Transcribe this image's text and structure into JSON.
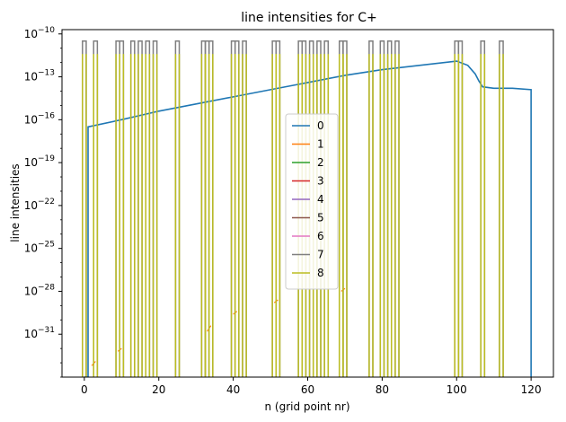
{
  "chart_data": {
    "type": "line",
    "title": "line intensities for C+",
    "xlabel": "n (grid point nr)",
    "ylabel": "line intensities",
    "x_scale": "linear",
    "y_scale": "log",
    "xlim": [
      -6,
      126
    ],
    "ylim_exp": [
      -34,
      -9.7
    ],
    "x_ticks": [
      0,
      20,
      40,
      60,
      80,
      100,
      120
    ],
    "x_tick_labels": [
      "0",
      "20",
      "40",
      "60",
      "80",
      "100",
      "120"
    ],
    "y_ticks_exp": [
      -31,
      -28,
      -25,
      -22,
      -19,
      -16,
      -13,
      -10
    ],
    "y_tick_labels": [
      "10",
      "10",
      "10",
      "10",
      "10",
      "10",
      "10",
      "10"
    ],
    "y_tick_superscripts": [
      "−31",
      "−28",
      "−25",
      "−22",
      "−19",
      "−16",
      "−13",
      "−10"
    ],
    "grid": false,
    "legend_position": "center",
    "spike_n": [
      0,
      3,
      9,
      10,
      13,
      15,
      17,
      19,
      25,
      32,
      33,
      34,
      40,
      41,
      43,
      51,
      52,
      58,
      59,
      61,
      63,
      65,
      69,
      70,
      77,
      80,
      82,
      84,
      100,
      101,
      107,
      112
    ],
    "series": [
      {
        "name": "0",
        "color": "#1f77b4",
        "x": [
          0,
          1,
          1,
          10,
          20,
          30,
          40,
          50,
          56,
          60,
          70,
          80,
          90,
          100,
          103,
          105,
          106,
          107,
          110,
          115,
          120,
          120
        ],
        "y_exp": [
          -34,
          -34,
          -16.5,
          -16,
          -15.4,
          -14.9,
          -14.4,
          -13.9,
          -13.6,
          -13.4,
          -12.9,
          -12.5,
          -12.2,
          -11.9,
          -12.2,
          -12.8,
          -13.3,
          -13.7,
          -13.8,
          -13.8,
          -13.9,
          -34
        ]
      },
      {
        "name": "1",
        "color": "#ff7f0e",
        "x": [
          2,
          3,
          9,
          10,
          33,
          34,
          40,
          41,
          51,
          52,
          69,
          70
        ],
        "y_exp": [
          -33.2,
          -32.9,
          -32.2,
          -32.0,
          -30.8,
          -30.4,
          -29.6,
          -29.4,
          -28.8,
          -28.6,
          -28.0,
          -27.8
        ]
      },
      {
        "name": "2",
        "color": "#2ca02c",
        "x": [],
        "y_exp": []
      },
      {
        "name": "3",
        "color": "#d62728",
        "x": [],
        "y_exp": []
      },
      {
        "name": "4",
        "color": "#9467bd",
        "x": [],
        "y_exp": []
      },
      {
        "name": "5",
        "color": "#8c564b",
        "x": [],
        "y_exp": []
      },
      {
        "name": "6",
        "color": "#e377c2",
        "x": [],
        "y_exp": []
      },
      {
        "name": "7",
        "color": "#7f7f7f",
        "spike_top_exp": -10.5
      },
      {
        "name": "8",
        "color": "#bcbd22",
        "spike_top_exp": -11.4
      }
    ]
  }
}
